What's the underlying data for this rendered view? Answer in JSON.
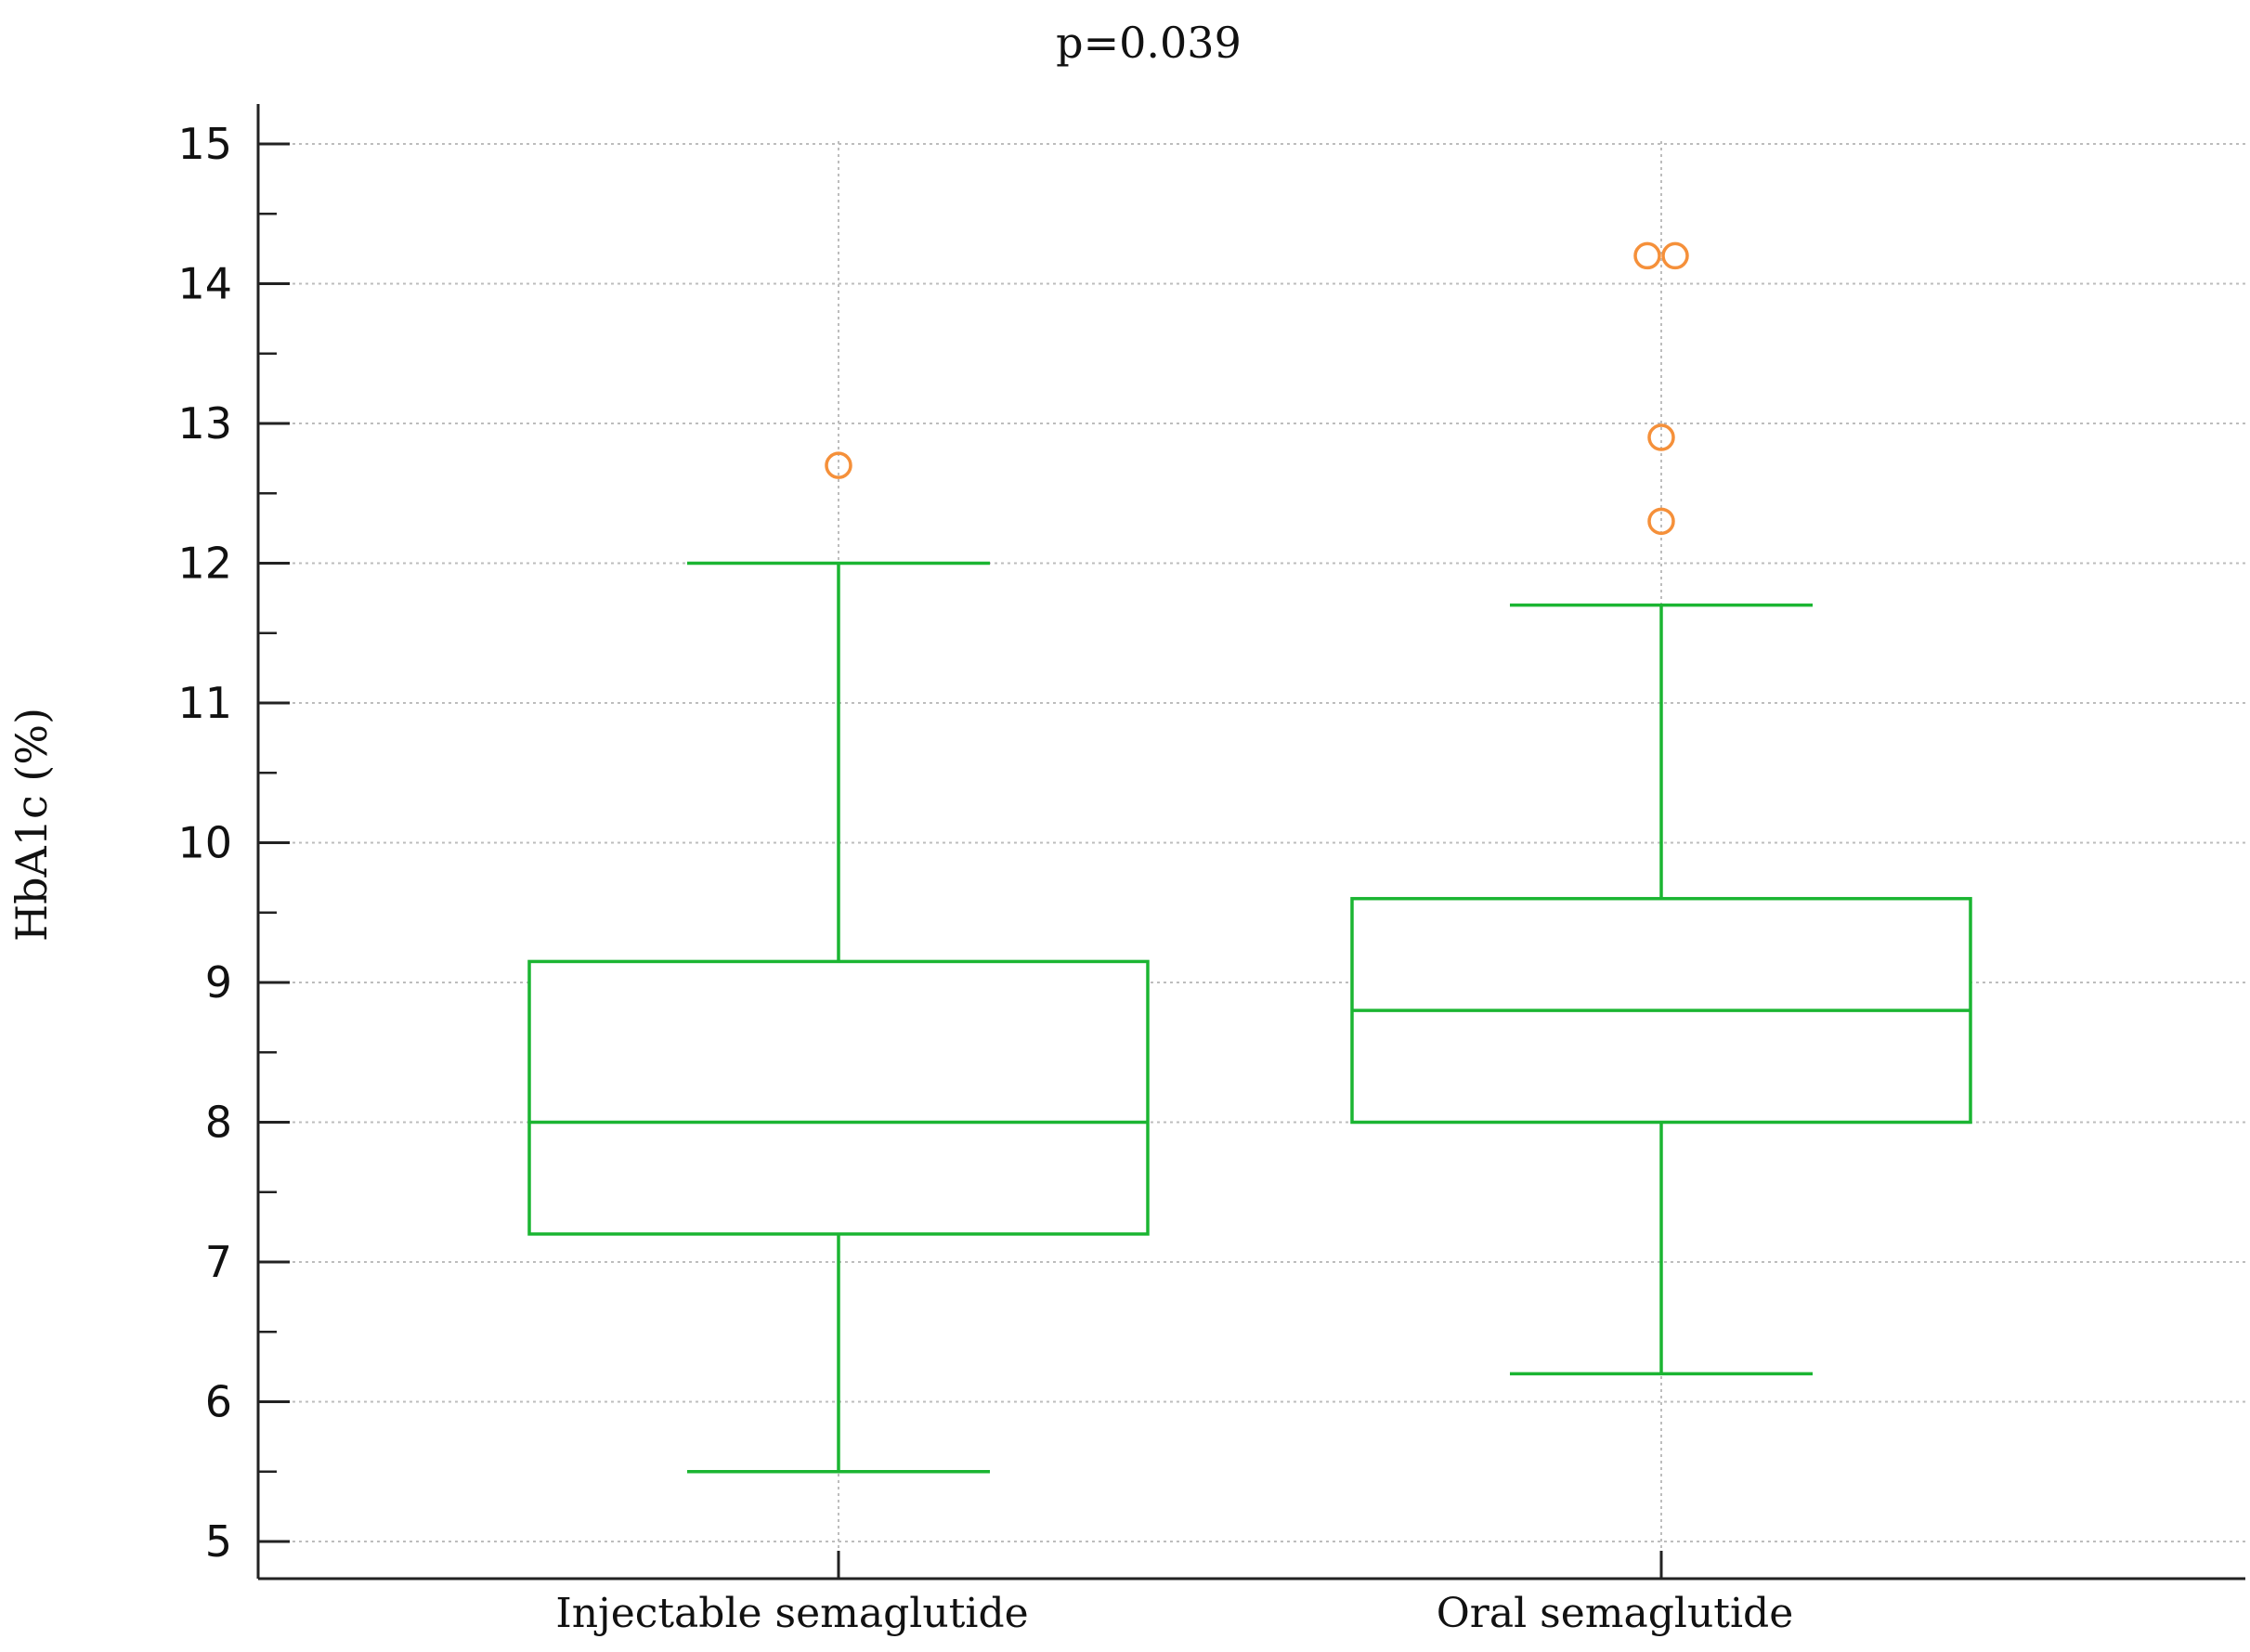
{
  "chart_data": {
    "type": "box",
    "title": "p=0.039",
    "xlabel": "",
    "ylabel": "HbA1c (%)",
    "ylim": [
      4.9,
      15.3
    ],
    "yticks": [
      5,
      6,
      7,
      8,
      9,
      10,
      11,
      12,
      13,
      14,
      15
    ],
    "ytick_labels": [
      "5",
      "6",
      "7",
      "8",
      "9",
      "10",
      "11",
      "12",
      "13",
      "14",
      "15"
    ],
    "grid": true,
    "categories": [
      "Injectable semaglutide",
      "Oral semaglutide"
    ],
    "boxes": [
      {
        "category": "Injectable semaglutide",
        "whisker_low": 5.5,
        "q1": 7.2,
        "median": 8.0,
        "q3": 9.15,
        "whisker_high": 12.0,
        "outliers": [
          12.7
        ]
      },
      {
        "category": "Oral semaglutide",
        "whisker_low": 6.2,
        "q1": 8.0,
        "median": 8.8,
        "q3": 9.6,
        "whisker_high": 11.7,
        "outliers": [
          14.2,
          14.2,
          12.9,
          12.3
        ]
      }
    ],
    "colors": {
      "box": "#1bb532",
      "outlier": "#f5903a",
      "grid": "#bdbdbd",
      "axis": "#222222"
    }
  }
}
